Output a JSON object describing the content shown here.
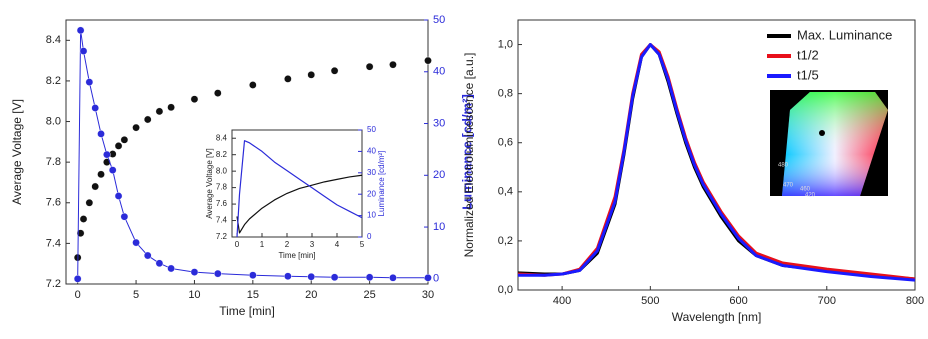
{
  "chart_data": [
    {
      "type": "scatter",
      "xlabel": "Time [min]",
      "ylabel": "Average Voltage [V]",
      "y2label": "Luminance [cd/m²]",
      "y2color": "#2b2bd9",
      "xlim": [
        -1,
        30
      ],
      "xticks": [
        0,
        5,
        10,
        15,
        20,
        25,
        30
      ],
      "ylim": [
        7.2,
        8.5
      ],
      "yticks": [
        7.2,
        7.4,
        7.6,
        7.8,
        {
          "value": 8,
          "label": "8.0"
        },
        8.2,
        8.4
      ],
      "y2lim": [
        -1,
        50
      ],
      "y2ticks": [
        0,
        10,
        20,
        30,
        40,
        50
      ],
      "x": [
        0,
        0.25,
        0.5,
        1,
        1.5,
        2,
        2.5,
        3,
        3.5,
        4,
        5,
        6,
        7,
        8,
        10,
        12,
        15,
        18,
        20,
        22,
        25,
        27,
        30
      ],
      "series": [
        {
          "name": "Average Voltage",
          "color": "#111111",
          "axis": "y",
          "values": [
            7.33,
            7.45,
            7.52,
            7.6,
            7.68,
            7.74,
            7.8,
            7.84,
            7.88,
            7.91,
            7.97,
            8.01,
            8.05,
            8.07,
            8.11,
            8.14,
            8.18,
            8.21,
            8.23,
            8.25,
            8.27,
            8.28,
            8.3
          ]
        },
        {
          "name": "Luminance",
          "color": "#2b2bd9",
          "axis": "y2",
          "connected": true,
          "values": [
            0,
            48,
            44,
            38,
            33,
            28,
            24,
            21,
            16,
            12,
            7,
            4.5,
            3,
            2,
            1.3,
            1,
            0.7,
            0.5,
            0.4,
            0.3,
            0.3,
            0.2,
            0.2
          ]
        }
      ]
    },
    {
      "type": "line",
      "xlabel": "Time [min]",
      "ylabel": "Average Voltage [V]",
      "y2label": "Luminance [cd/m²]",
      "y2color": "#2b2bd9",
      "xlim": [
        -0.2,
        5
      ],
      "xticks": [
        0,
        1,
        2,
        3,
        4,
        5
      ],
      "ylim": [
        7.2,
        8.5
      ],
      "yticks": [
        7.2,
        7.4,
        7.6,
        7.8,
        {
          "value": 8,
          "label": "8.0"
        },
        8.2,
        8.4
      ],
      "y2lim": [
        0,
        50
      ],
      "y2ticks": [
        0,
        10,
        20,
        30,
        40,
        50
      ],
      "x": [
        0,
        0.1,
        0.3,
        0.5,
        1,
        1.5,
        2,
        2.5,
        3,
        3.5,
        4,
        4.5,
        5
      ],
      "series": [
        {
          "name": "Average Voltage",
          "color": "#111111",
          "axis": "y",
          "values": [
            7.45,
            7.25,
            7.35,
            7.42,
            7.55,
            7.65,
            7.73,
            7.79,
            7.83,
            7.87,
            7.9,
            7.93,
            7.95
          ]
        },
        {
          "name": "Luminance",
          "color": "#2b2bd9",
          "axis": "y2",
          "values": [
            0,
            20,
            45,
            44,
            40,
            35,
            31,
            27,
            23,
            19,
            15,
            12,
            9
          ]
        }
      ]
    },
    {
      "type": "line",
      "xlabel": "Wavelength [nm]",
      "ylabel": "Normalized Electroluminescence [a.u.]",
      "xlim": [
        350,
        800
      ],
      "xticks": [
        400,
        500,
        600,
        700,
        800
      ],
      "ylim": [
        0,
        1.1
      ],
      "yticks": [
        {
          "value": 0,
          "label": "0,0"
        },
        {
          "value": 0.2,
          "label": "0,2"
        },
        {
          "value": 0.4,
          "label": "0,4"
        },
        {
          "value": 0.6,
          "label": "0,6"
        },
        {
          "value": 0.8,
          "label": "0,8"
        },
        {
          "value": 1,
          "label": "1,0"
        }
      ],
      "legend": "upper right",
      "cie_labels": [
        "480",
        "470",
        "460",
        "420"
      ],
      "x": [
        350,
        380,
        400,
        420,
        440,
        460,
        470,
        480,
        490,
        500,
        510,
        520,
        530,
        540,
        550,
        560,
        580,
        600,
        620,
        650,
        700,
        750,
        800
      ],
      "series": [
        {
          "name": "Max. Luminance",
          "color": "#000000",
          "values": [
            0.07,
            0.065,
            0.065,
            0.08,
            0.15,
            0.35,
            0.55,
            0.78,
            0.95,
            1.0,
            0.96,
            0.85,
            0.72,
            0.6,
            0.5,
            0.42,
            0.3,
            0.2,
            0.14,
            0.1,
            0.08,
            0.06,
            0.045
          ]
        },
        {
          "name": "t1/2",
          "color": "#e8101a",
          "values": [
            0.065,
            0.06,
            0.065,
            0.085,
            0.17,
            0.38,
            0.57,
            0.8,
            0.96,
            1.0,
            0.97,
            0.87,
            0.74,
            0.62,
            0.52,
            0.44,
            0.32,
            0.22,
            0.15,
            0.11,
            0.085,
            0.065,
            0.045
          ]
        },
        {
          "name": "t1/5",
          "color": "#1a1aff",
          "values": [
            0.06,
            0.06,
            0.065,
            0.08,
            0.16,
            0.36,
            0.56,
            0.79,
            0.95,
            1.0,
            0.96,
            0.86,
            0.73,
            0.61,
            0.51,
            0.43,
            0.31,
            0.21,
            0.14,
            0.1,
            0.075,
            0.055,
            0.04
          ]
        }
      ]
    }
  ]
}
